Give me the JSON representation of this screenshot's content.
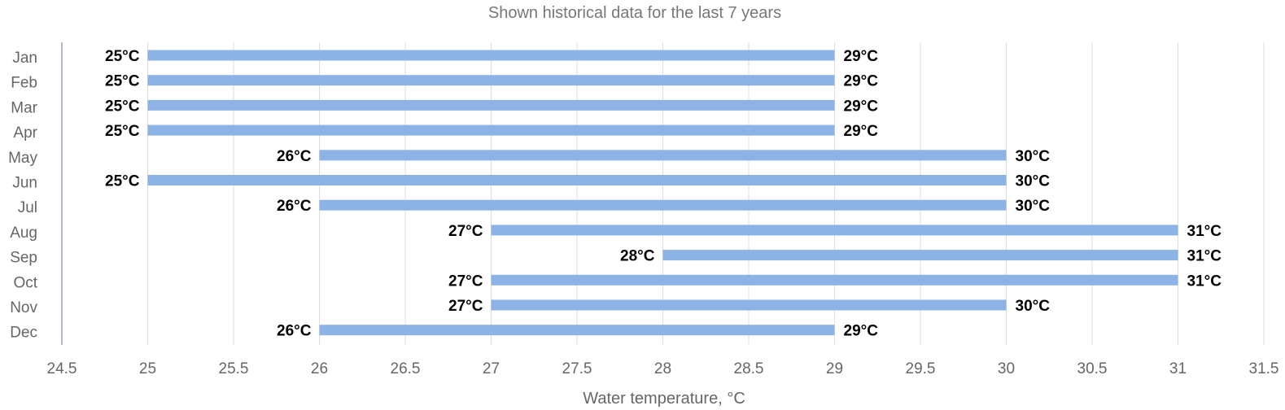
{
  "chart_data": {
    "type": "bar",
    "orientation": "horizontal-range",
    "title": "Shown historical data for the last 7 years",
    "xlabel": "Water temperature, °C",
    "ylabel": "",
    "xlim": [
      24.5,
      31.5
    ],
    "x_ticks": [
      24.5,
      25,
      25.5,
      26,
      26.5,
      27,
      27.5,
      28,
      28.5,
      29,
      29.5,
      30,
      30.5,
      31,
      31.5
    ],
    "grid": true,
    "bar_color": "#8db3e6",
    "grid_color": "#dddddd",
    "categories": [
      "Jan",
      "Feb",
      "Mar",
      "Apr",
      "May",
      "Jun",
      "Jul",
      "Aug",
      "Sep",
      "Oct",
      "Nov",
      "Dec"
    ],
    "series": [
      {
        "values": [
          {
            "low": 25,
            "high": 29,
            "low_label": "25°C",
            "high_label": "29°C"
          },
          {
            "low": 25,
            "high": 29,
            "low_label": "25°C",
            "high_label": "29°C"
          },
          {
            "low": 25,
            "high": 29,
            "low_label": "25°C",
            "high_label": "29°C"
          },
          {
            "low": 25,
            "high": 29,
            "low_label": "25°C",
            "high_label": "29°C"
          },
          {
            "low": 26,
            "high": 30,
            "low_label": "26°C",
            "high_label": "30°C"
          },
          {
            "low": 25,
            "high": 30,
            "low_label": "25°C",
            "high_label": "30°C"
          },
          {
            "low": 26,
            "high": 30,
            "low_label": "26°C",
            "high_label": "30°C"
          },
          {
            "low": 27,
            "high": 31,
            "low_label": "27°C",
            "high_label": "31°C"
          },
          {
            "low": 28,
            "high": 31,
            "low_label": "28°C",
            "high_label": "31°C"
          },
          {
            "low": 27,
            "high": 31,
            "low_label": "27°C",
            "high_label": "31°C"
          },
          {
            "low": 27,
            "high": 30,
            "low_label": "27°C",
            "high_label": "30°C"
          },
          {
            "low": 26,
            "high": 29,
            "low_label": "26°C",
            "high_label": "29°C"
          }
        ]
      }
    ]
  }
}
